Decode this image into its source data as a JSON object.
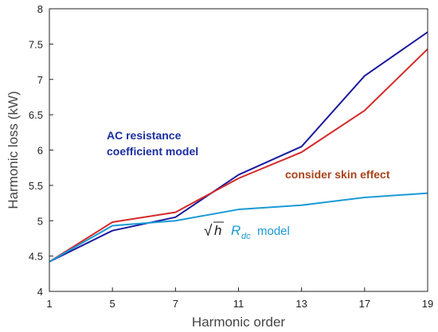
{
  "chart_data": {
    "type": "line",
    "title": "",
    "xlabel": "Harmonic order",
    "ylabel": "Harmonic loss (kW)",
    "categories": [
      "1",
      "5",
      "7",
      "11",
      "13",
      "17",
      "19"
    ],
    "ylim": [
      4,
      8
    ],
    "yticks": [
      "4",
      "4.5",
      "5",
      "5.5",
      "6",
      "6.5",
      "7",
      "7.5",
      "8"
    ],
    "grid": false,
    "series": [
      {
        "name": "AC resistance coefficient model",
        "color": "#1a1a9e",
        "values": [
          4.42,
          4.86,
          5.05,
          5.65,
          6.05,
          7.05,
          7.67
        ]
      },
      {
        "name": "consider skin effect",
        "color": "#d42a2a",
        "values": [
          4.42,
          4.98,
          5.12,
          5.6,
          5.97,
          6.56,
          7.43
        ]
      },
      {
        "name": "√h R_dc model",
        "color": "#1a9ad6",
        "values": [
          4.42,
          4.93,
          5.0,
          5.16,
          5.22,
          5.33,
          5.39
        ]
      }
    ],
    "annotations": {
      "ac_line1": "AC resistance",
      "ac_line2": "coefficient model",
      "ac_color": "#1a2fa0",
      "skin": "consider skin effect",
      "skin_color": "#a8431a",
      "rdc_sqrt": "√",
      "rdc_h": "h",
      "rdc_R": "R",
      "rdc_sub": "dc",
      "rdc_model": "model",
      "rdc_color": "#1a9ad6"
    }
  }
}
